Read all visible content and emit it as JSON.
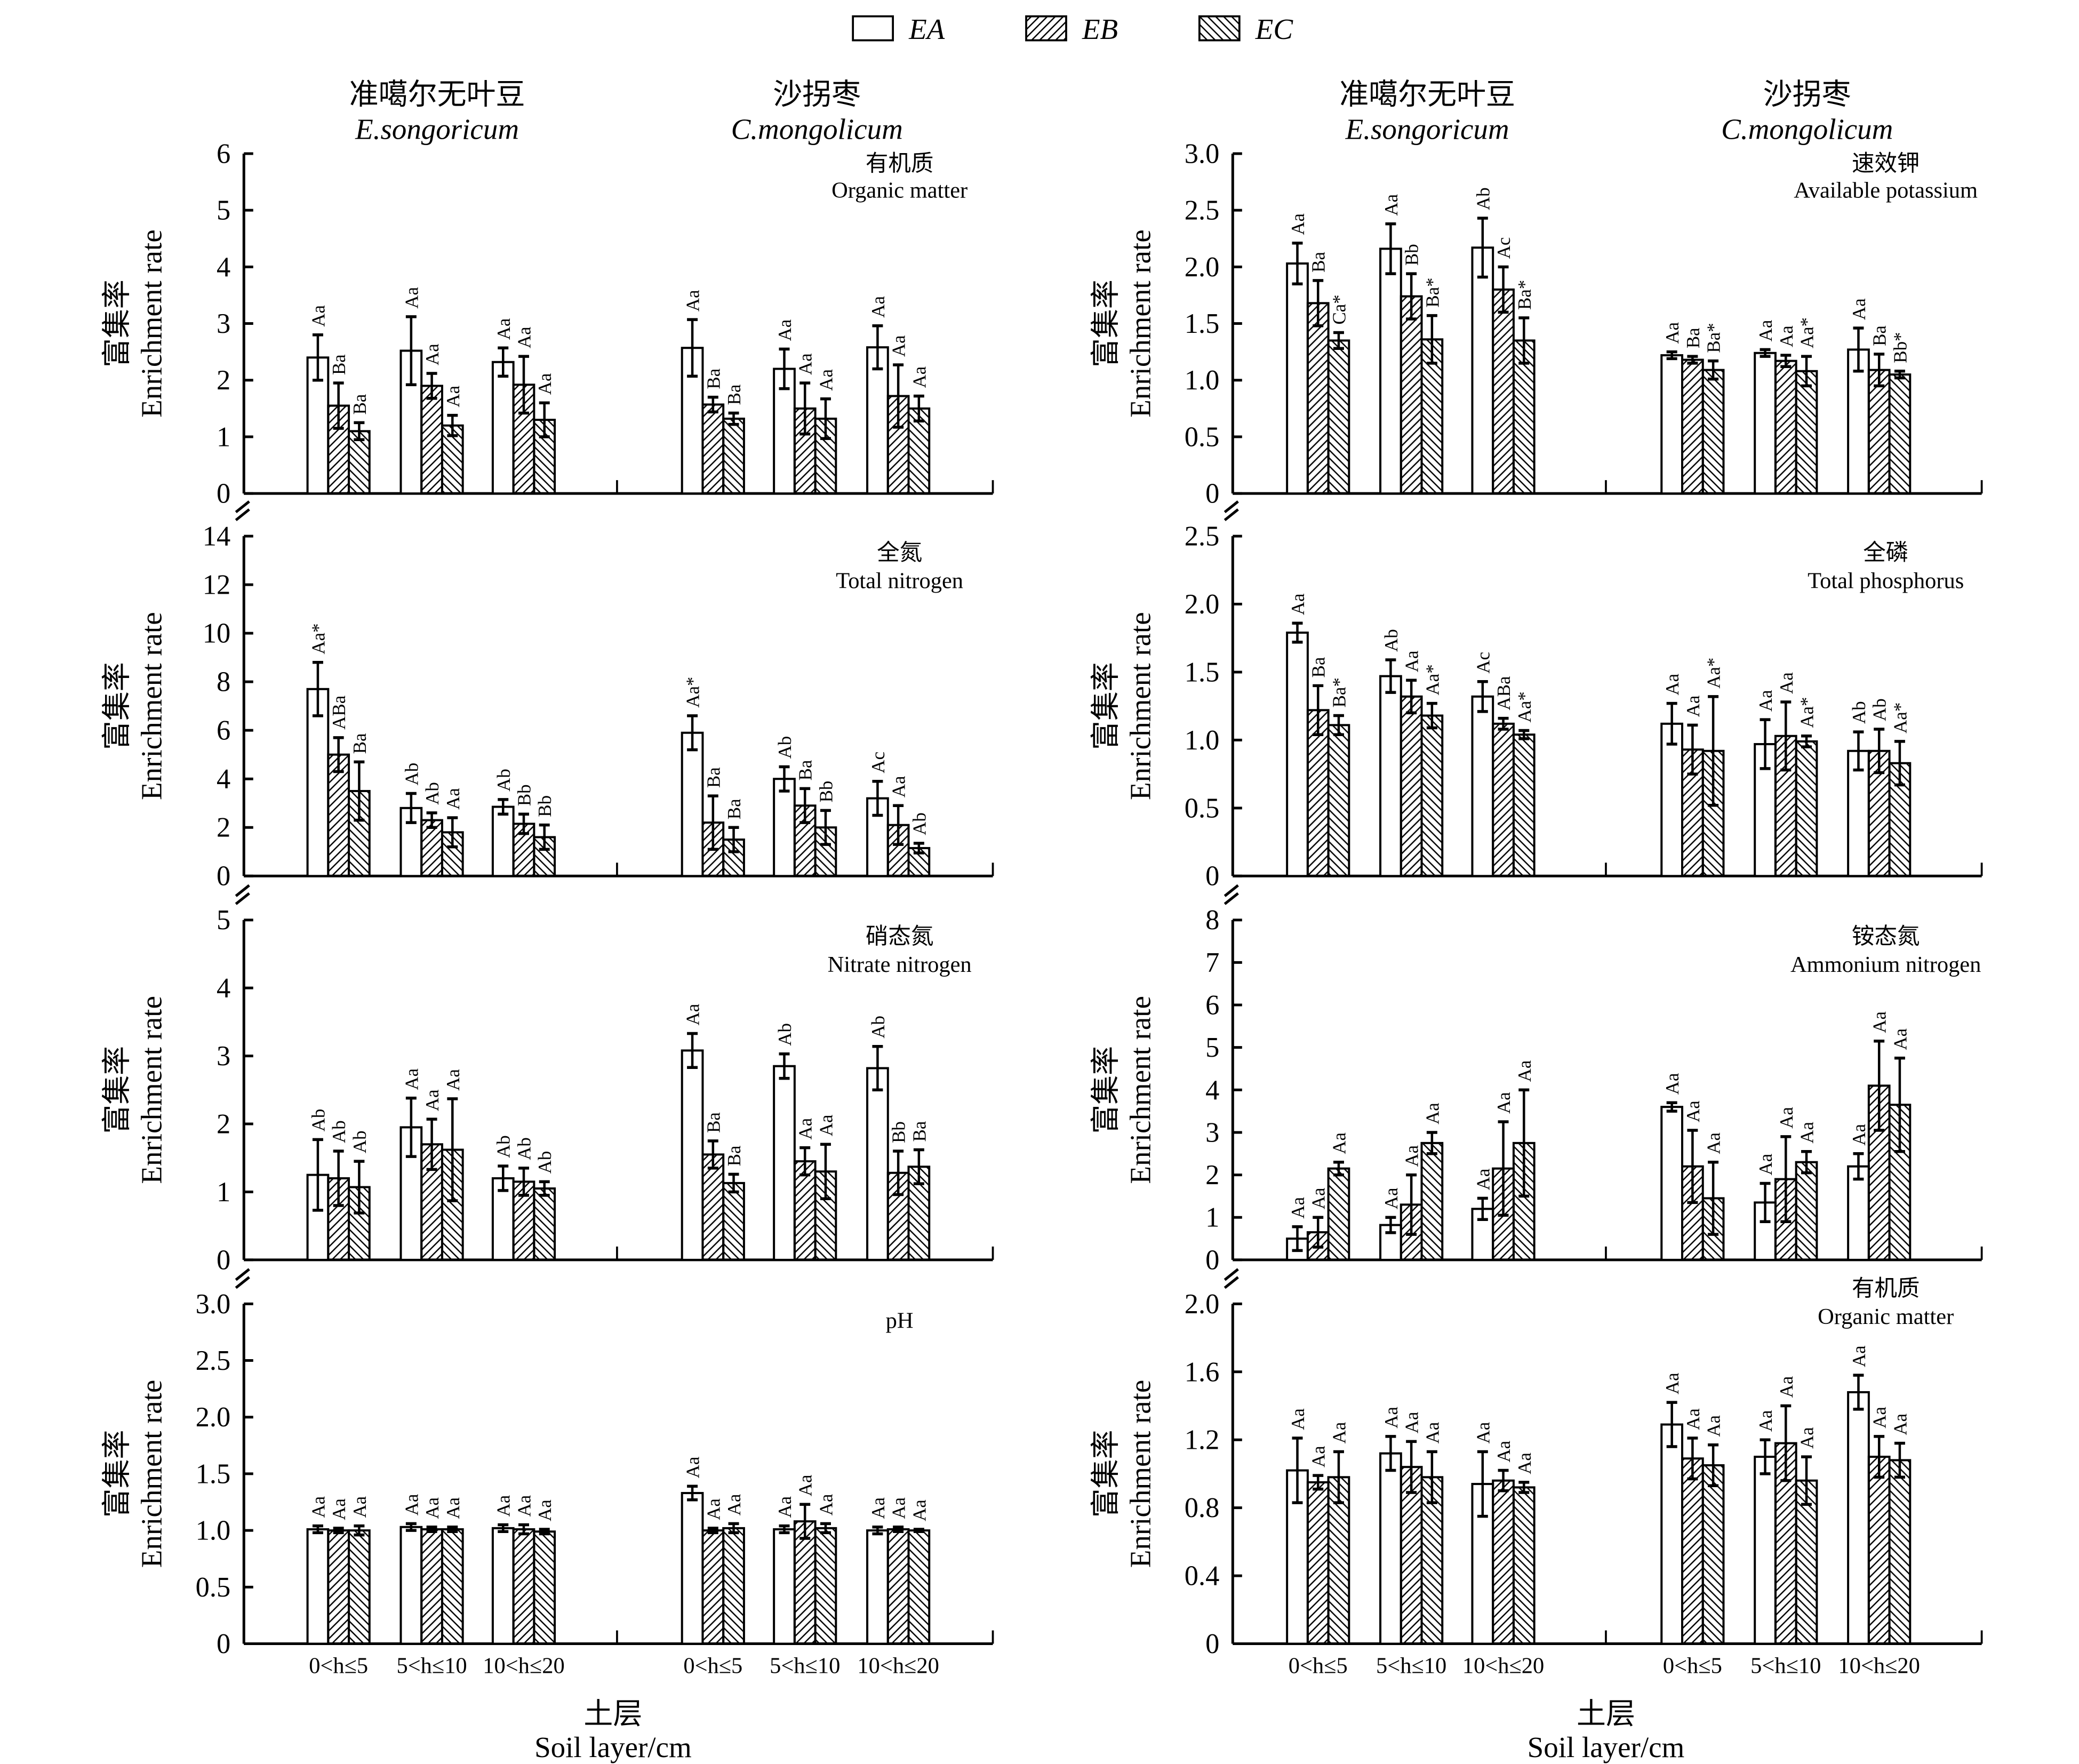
{
  "legend": {
    "items": [
      {
        "name": "EA",
        "fill": "none"
      },
      {
        "name": "EB",
        "fill": "forward-hatch"
      },
      {
        "name": "EC",
        "fill": "back-hatch"
      }
    ]
  },
  "headers": {
    "species1_cn": "准噶尔无叶豆",
    "species1_en": "E.songoricum",
    "species2_cn": "沙拐枣",
    "species2_en": "C.mongolicum"
  },
  "axes": {
    "ylabel_cn": "富集率",
    "ylabel_en": "Enrichment rate",
    "xticks": [
      "0<h≤5",
      "5<h≤10",
      "10<h≤20",
      "0<h≤5",
      "5<h≤10",
      "10<h≤20"
    ],
    "xlabel_cn": "土层",
    "xlabel_en": "Soil layer/cm"
  },
  "chart_data": [
    {
      "type": "bar",
      "title_cn": "有机质",
      "title_en": "Organic matter",
      "ylim": [
        0,
        6
      ],
      "ytick_labels": [
        "0",
        "1",
        "2",
        "3",
        "4",
        "5",
        "6"
      ],
      "series": [
        {
          "name": "EA",
          "values": [
            2.4,
            2.52,
            2.32,
            2.57,
            2.2,
            2.58
          ],
          "errors": [
            0.4,
            0.6,
            0.25,
            0.5,
            0.35,
            0.38
          ],
          "labels": [
            "Aa",
            "Aa",
            "Aa",
            "Aa",
            "Aa",
            "Aa"
          ]
        },
        {
          "name": "EB",
          "values": [
            1.55,
            1.9,
            1.92,
            1.57,
            1.5,
            1.72
          ],
          "errors": [
            0.4,
            0.22,
            0.5,
            0.13,
            0.45,
            0.55
          ],
          "labels": [
            "Ba",
            "Aa",
            "Aa",
            "Ba",
            "Aa",
            "Aa"
          ]
        },
        {
          "name": "EC",
          "values": [
            1.1,
            1.2,
            1.3,
            1.32,
            1.32,
            1.5
          ],
          "errors": [
            0.15,
            0.18,
            0.3,
            0.1,
            0.35,
            0.22
          ],
          "labels": [
            "Ba",
            "Aa",
            "Aa",
            "Ba",
            "Aa",
            "Aa"
          ]
        }
      ]
    },
    {
      "type": "bar",
      "title_cn": "速效钾",
      "title_en": "Available potassium",
      "ylim": [
        0,
        3
      ],
      "ytick_labels": [
        "0",
        "0.5",
        "1.0",
        "1.5",
        "2.0",
        "2.5",
        "3.0"
      ],
      "series": [
        {
          "name": "EA",
          "values": [
            2.03,
            2.16,
            2.17,
            1.22,
            1.24,
            1.27
          ],
          "errors": [
            0.18,
            0.22,
            0.26,
            0.03,
            0.03,
            0.19
          ],
          "labels": [
            "Aa",
            "Aa",
            "Ab",
            "Aa",
            "Aa",
            "Aa"
          ]
        },
        {
          "name": "EB",
          "values": [
            1.68,
            1.74,
            1.8,
            1.18,
            1.17,
            1.09
          ],
          "errors": [
            0.2,
            0.2,
            0.2,
            0.03,
            0.05,
            0.14
          ],
          "labels": [
            "Ba",
            "Bb",
            "Ac",
            "Ba",
            "Aa",
            "Ba"
          ]
        },
        {
          "name": "EC",
          "values": [
            1.35,
            1.36,
            1.35,
            1.09,
            1.08,
            1.05
          ],
          "errors": [
            0.07,
            0.21,
            0.2,
            0.08,
            0.13,
            0.03
          ],
          "labels": [
            "Ca*",
            "Ba*",
            "Ba*",
            "Ba*",
            "Aa*",
            "Bb*"
          ]
        }
      ]
    },
    {
      "type": "bar",
      "title_cn": "全氮",
      "title_en": "Total nitrogen",
      "ylim": [
        0,
        14
      ],
      "ytick_labels": [
        "0",
        "2",
        "4",
        "6",
        "8",
        "10",
        "12",
        "14"
      ],
      "series": [
        {
          "name": "EA",
          "values": [
            7.7,
            2.8,
            2.85,
            5.9,
            4.0,
            3.2
          ],
          "errors": [
            1.1,
            0.6,
            0.3,
            0.7,
            0.5,
            0.7
          ],
          "labels": [
            "Aa*",
            "Ab",
            "Ab",
            "Aa*",
            "Ab",
            "Ac"
          ]
        },
        {
          "name": "EB",
          "values": [
            5.0,
            2.3,
            2.15,
            2.2,
            2.9,
            2.1
          ],
          "errors": [
            0.7,
            0.3,
            0.4,
            1.1,
            0.7,
            0.8
          ],
          "labels": [
            "ABa",
            "Ab",
            "Bb",
            "Ba",
            "Ba",
            "Aa"
          ]
        },
        {
          "name": "EC",
          "values": [
            3.5,
            1.8,
            1.6,
            1.5,
            2.0,
            1.15
          ],
          "errors": [
            1.2,
            0.6,
            0.5,
            0.5,
            0.7,
            0.2
          ],
          "labels": [
            "Ba",
            "Aa",
            "Bb",
            "Ba",
            "Bb",
            "Ab"
          ]
        }
      ]
    },
    {
      "type": "bar",
      "title_cn": "全磷",
      "title_en": "Total phosphorus",
      "ylim": [
        0,
        2.5
      ],
      "ytick_labels": [
        "0",
        "0.5",
        "1.0",
        "1.5",
        "2.0",
        "2.5"
      ],
      "series": [
        {
          "name": "EA",
          "values": [
            1.79,
            1.47,
            1.32,
            1.12,
            0.97,
            0.92
          ],
          "errors": [
            0.07,
            0.12,
            0.11,
            0.15,
            0.18,
            0.14
          ],
          "labels": [
            "Aa",
            "Ab",
            "Ac",
            "Aa",
            "Aa",
            "Ab"
          ]
        },
        {
          "name": "EB",
          "values": [
            1.22,
            1.32,
            1.12,
            0.93,
            1.03,
            0.92
          ],
          "errors": [
            0.18,
            0.12,
            0.04,
            0.18,
            0.25,
            0.16
          ],
          "labels": [
            "Ba",
            "Aa",
            "ABa",
            "Aa",
            "Aa",
            "Ab"
          ]
        },
        {
          "name": "EC",
          "values": [
            1.11,
            1.18,
            1.04,
            0.92,
            0.99,
            0.83
          ],
          "errors": [
            0.07,
            0.09,
            0.03,
            0.4,
            0.04,
            0.16
          ],
          "labels": [
            "Ba*",
            "Aa*",
            "Aa*",
            "Aa*",
            "Aa*",
            "Aa*"
          ]
        }
      ]
    },
    {
      "type": "bar",
      "title_cn": "硝态氮",
      "title_en": "Nitrate nitrogen",
      "ylim": [
        0,
        5
      ],
      "ytick_labels": [
        "0",
        "1",
        "2",
        "3",
        "4",
        "5"
      ],
      "series": [
        {
          "name": "EA",
          "values": [
            1.25,
            1.95,
            1.2,
            3.08,
            2.85,
            2.82
          ],
          "errors": [
            0.52,
            0.43,
            0.18,
            0.25,
            0.18,
            0.32
          ],
          "labels": [
            "Ab",
            "Aa",
            "Ab",
            "Aa",
            "Ab",
            "Ab"
          ]
        },
        {
          "name": "EB",
          "values": [
            1.2,
            1.7,
            1.15,
            1.55,
            1.45,
            1.28
          ],
          "errors": [
            0.4,
            0.37,
            0.2,
            0.2,
            0.2,
            0.32
          ],
          "labels": [
            "Ab",
            "Aa",
            "Ab",
            "Ba",
            "Aa",
            "Bb"
          ]
        },
        {
          "name": "EC",
          "values": [
            1.07,
            1.62,
            1.05,
            1.13,
            1.3,
            1.37
          ],
          "errors": [
            0.38,
            0.75,
            0.1,
            0.13,
            0.4,
            0.25
          ],
          "labels": [
            "Ab",
            "Aa",
            "Ab",
            "Ba",
            "Aa",
            "Ba"
          ]
        }
      ]
    },
    {
      "type": "bar",
      "title_cn": "铵态氮",
      "title_en": "Ammonium nitrogen",
      "ylim": [
        0,
        8
      ],
      "ytick_labels": [
        "0",
        "1",
        "2",
        "3",
        "4",
        "5",
        "6",
        "7",
        "8"
      ],
      "series": [
        {
          "name": "EA",
          "values": [
            0.5,
            0.82,
            1.2,
            3.6,
            1.35,
            2.2
          ],
          "errors": [
            0.28,
            0.18,
            0.25,
            0.1,
            0.45,
            0.3
          ],
          "labels": [
            "Aa",
            "Aa",
            "Aa",
            "Aa",
            "Aa",
            "Aa"
          ]
        },
        {
          "name": "EB",
          "values": [
            0.65,
            1.3,
            2.15,
            2.2,
            1.9,
            4.1
          ],
          "errors": [
            0.35,
            0.7,
            1.1,
            0.85,
            1.0,
            1.05
          ],
          "labels": [
            "Aa",
            "Aa",
            "Aa",
            "Aa",
            "Aa",
            "Aa"
          ]
        },
        {
          "name": "EC",
          "values": [
            2.15,
            2.75,
            2.75,
            1.45,
            2.3,
            3.65
          ],
          "errors": [
            0.15,
            0.25,
            1.25,
            0.85,
            0.25,
            1.1
          ],
          "labels": [
            "Aa",
            "Aa",
            "Aa",
            "Aa",
            "Aa",
            "Aa"
          ]
        }
      ]
    },
    {
      "type": "bar",
      "title_cn": "",
      "title_en": "pH",
      "ylim": [
        0,
        3
      ],
      "ytick_labels": [
        "0",
        "0.5",
        "1.0",
        "1.5",
        "2.0",
        "2.5",
        "3.0"
      ],
      "series": [
        {
          "name": "EA",
          "values": [
            1.01,
            1.03,
            1.02,
            1.33,
            1.01,
            1.0
          ],
          "errors": [
            0.03,
            0.03,
            0.03,
            0.06,
            0.03,
            0.03
          ],
          "labels": [
            "Aa",
            "Aa",
            "Aa",
            "Aa",
            "Aa",
            "Aa"
          ]
        },
        {
          "name": "EB",
          "values": [
            1.0,
            1.01,
            1.01,
            1.0,
            1.08,
            1.01
          ],
          "errors": [
            0.02,
            0.02,
            0.04,
            0.02,
            0.15,
            0.02
          ],
          "labels": [
            "Aa",
            "Aa",
            "Aa",
            "Aa",
            "Aa",
            "Aa"
          ]
        },
        {
          "name": "EC",
          "values": [
            1.0,
            1.01,
            0.99,
            1.02,
            1.02,
            1.0
          ],
          "errors": [
            0.04,
            0.02,
            0.02,
            0.04,
            0.04,
            0.01
          ],
          "labels": [
            "Aa",
            "Aa",
            "Aa",
            "Aa",
            "Aa",
            "Aa"
          ]
        }
      ]
    },
    {
      "type": "bar",
      "title_cn": "有机质",
      "title_en": "Organic matter",
      "ylim": [
        0,
        2
      ],
      "ytick_labels": [
        "0",
        "0.4",
        "0.8",
        "1.2",
        "1.6",
        "2.0"
      ],
      "series": [
        {
          "name": "EA",
          "values": [
            1.02,
            1.12,
            0.94,
            1.29,
            1.1,
            1.48
          ],
          "errors": [
            0.19,
            0.1,
            0.19,
            0.13,
            0.1,
            0.1
          ],
          "labels": [
            "Aa",
            "Aa",
            "Aa",
            "Aa",
            "Aa",
            "Aa"
          ]
        },
        {
          "name": "EB",
          "values": [
            0.95,
            1.04,
            0.96,
            1.09,
            1.18,
            1.1
          ],
          "errors": [
            0.04,
            0.15,
            0.06,
            0.12,
            0.22,
            0.12
          ],
          "labels": [
            "Aa",
            "Aa",
            "Aa",
            "Aa",
            "Aa",
            "Aa"
          ]
        },
        {
          "name": "EC",
          "values": [
            0.98,
            0.98,
            0.92,
            1.05,
            0.96,
            1.08
          ],
          "errors": [
            0.15,
            0.15,
            0.03,
            0.12,
            0.14,
            0.1
          ],
          "labels": [
            "Aa",
            "Aa",
            "Aa",
            "Aa",
            "Aa",
            "Aa"
          ]
        }
      ]
    }
  ]
}
